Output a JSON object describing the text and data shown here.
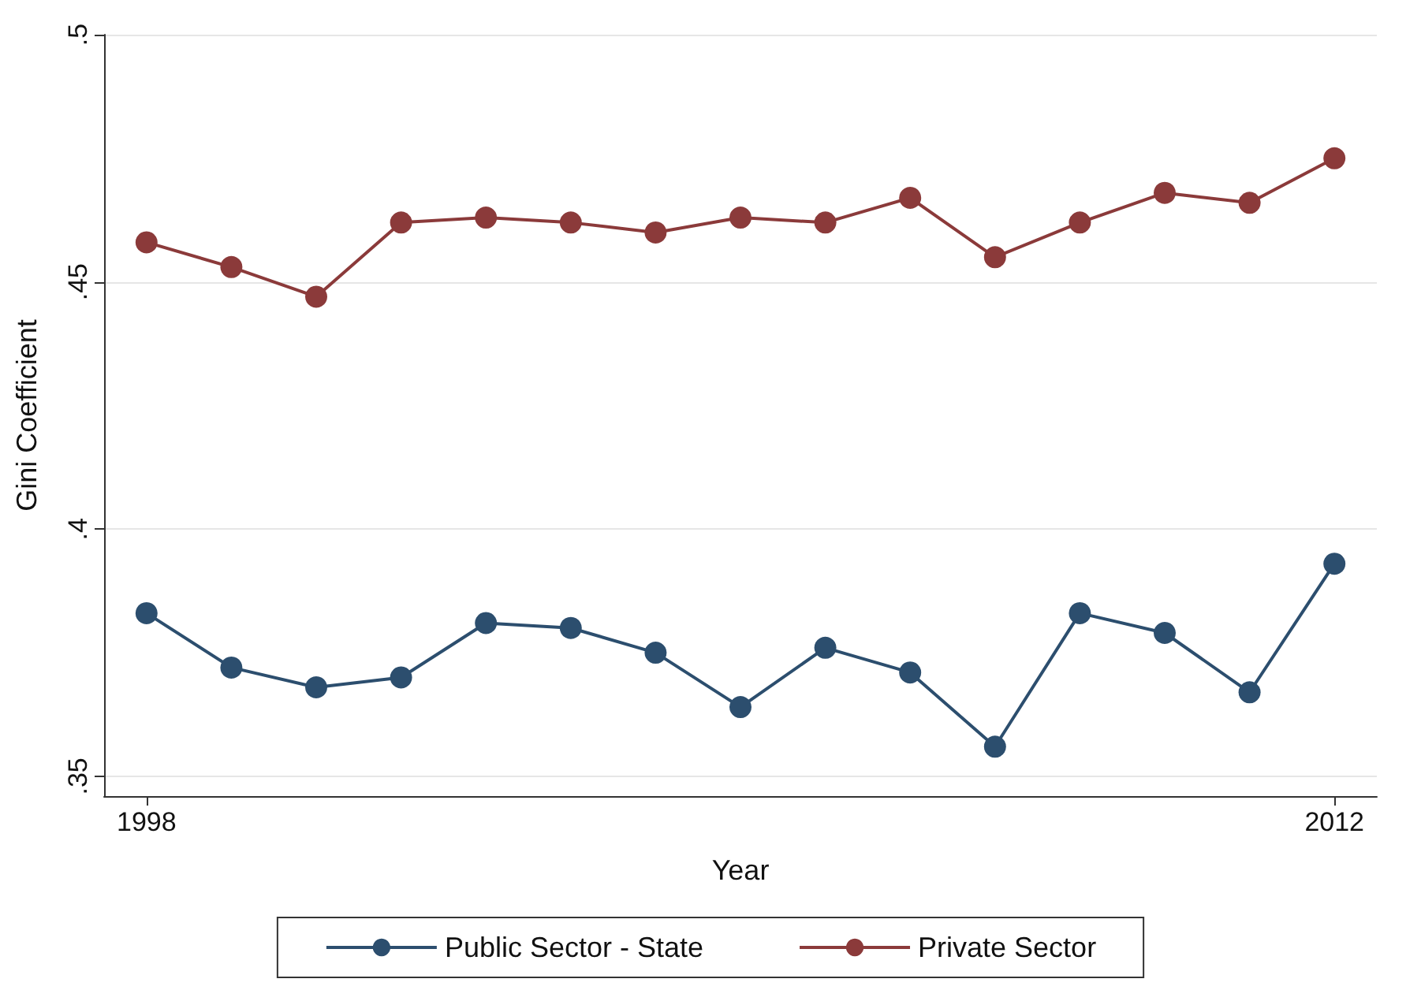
{
  "chart_data": {
    "type": "line",
    "xlabel": "Year",
    "ylabel": "Gini Coefficient",
    "x": [
      1998,
      1999,
      2000,
      2001,
      2002,
      2003,
      2004,
      2005,
      2006,
      2007,
      2008,
      2009,
      2010,
      2011,
      2012
    ],
    "series": [
      {
        "name": "Public Sector - State",
        "color": "#2c4e6e",
        "values": [
          0.383,
          0.372,
          0.368,
          0.37,
          0.381,
          0.38,
          0.375,
          0.364,
          0.376,
          0.371,
          0.356,
          0.383,
          0.379,
          0.367,
          0.393
        ]
      },
      {
        "name": "Private Sector",
        "color": "#8b3a3a",
        "values": [
          0.458,
          0.453,
          0.447,
          0.462,
          0.463,
          0.462,
          0.46,
          0.463,
          0.462,
          0.467,
          0.455,
          0.462,
          0.468,
          0.466,
          0.475
        ]
      }
    ],
    "xlim": [
      1997.5,
      2012.5
    ],
    "xticks": [
      1998,
      2012
    ],
    "ylim": [
      0.346,
      0.5
    ],
    "yticks": [
      {
        "value": 0.35,
        "label": ".35"
      },
      {
        "value": 0.4,
        "label": ".4"
      },
      {
        "value": 0.45,
        "label": ".45"
      },
      {
        "value": 0.5,
        "label": ".5"
      }
    ],
    "grid": "y",
    "legend": "bottom",
    "marker": "circle",
    "line_style": "solid"
  }
}
